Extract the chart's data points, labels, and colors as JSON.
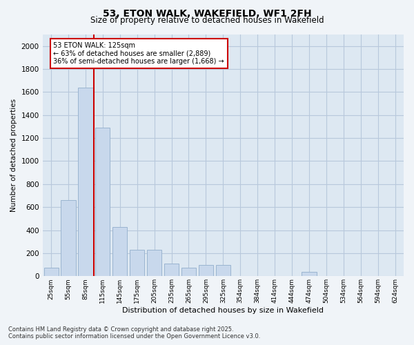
{
  "title": "53, ETON WALK, WAKEFIELD, WF1 2FH",
  "subtitle": "Size of property relative to detached houses in Wakefield",
  "xlabel": "Distribution of detached houses by size in Wakefield",
  "ylabel": "Number of detached properties",
  "categories": [
    "25sqm",
    "55sqm",
    "85sqm",
    "115sqm",
    "145sqm",
    "175sqm",
    "205sqm",
    "235sqm",
    "265sqm",
    "295sqm",
    "325sqm",
    "354sqm",
    "384sqm",
    "414sqm",
    "444sqm",
    "474sqm",
    "504sqm",
    "534sqm",
    "564sqm",
    "594sqm",
    "624sqm"
  ],
  "values": [
    75,
    660,
    1640,
    1290,
    430,
    230,
    230,
    110,
    75,
    100,
    100,
    0,
    0,
    0,
    0,
    40,
    0,
    0,
    0,
    0,
    0
  ],
  "bar_color": "#c8d8ec",
  "bar_edge_color": "#9ab4d0",
  "grid_color": "#b8c8dc",
  "background_color": "#dde8f2",
  "fig_background": "#f0f4f8",
  "property_label": "53 ETON WALK: 125sqm",
  "annotation_line1": "← 63% of detached houses are smaller (2,889)",
  "annotation_line2": "36% of semi-detached houses are larger (1,668) →",
  "annotation_box_facecolor": "#ffffff",
  "annotation_box_edgecolor": "#cc0000",
  "vline_color": "#cc0000",
  "vline_x": 2.5,
  "ylim": [
    0,
    2100
  ],
  "yticks": [
    0,
    200,
    400,
    600,
    800,
    1000,
    1200,
    1400,
    1600,
    1800,
    2000
  ],
  "footer_line1": "Contains HM Land Registry data © Crown copyright and database right 2025.",
  "footer_line2": "Contains public sector information licensed under the Open Government Licence v3.0."
}
